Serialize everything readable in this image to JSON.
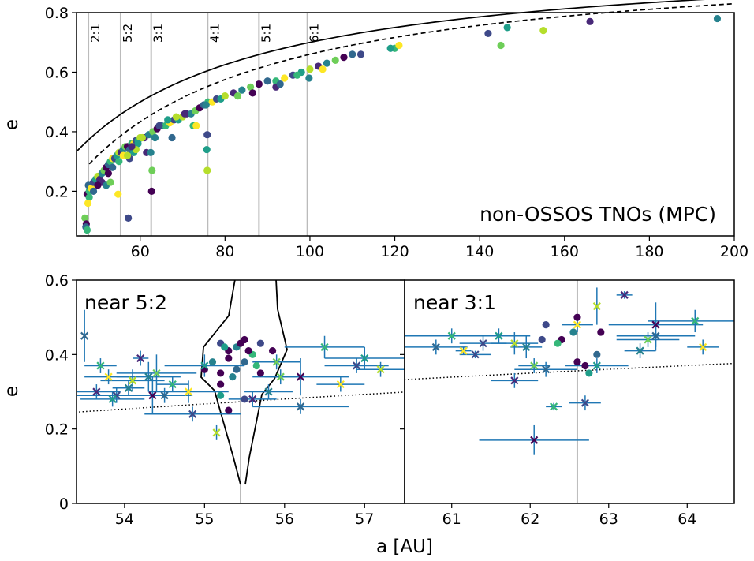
{
  "chart_data": [
    {
      "type": "scatter",
      "panel": "top",
      "title": "",
      "xlabel": "",
      "ylabel": "e",
      "xlim": [
        45,
        200
      ],
      "ylim": [
        0.05,
        0.8
      ],
      "xticks": [
        60,
        80,
        100,
        120,
        140,
        160,
        180,
        200
      ],
      "yticks": [
        0.2,
        0.4,
        0.6,
        0.8
      ],
      "grid": false,
      "annotation": "non-OSSOS TNOs (MPC)",
      "resonances": [
        {
          "label": "2:1",
          "a": 47.8
        },
        {
          "label": "5:2",
          "a": 55.4
        },
        {
          "label": "3:1",
          "a": 62.6
        },
        {
          "label": "4:1",
          "a": 75.9
        },
        {
          "label": "5:1",
          "a": 88.0
        },
        {
          "label": "6:1",
          "a": 99.4
        }
      ],
      "series": [
        {
          "values": [
            [
              47.5,
              0.19
            ],
            [
              47.8,
              0.22
            ],
            [
              48.0,
              0.2
            ],
            [
              48.5,
              0.21
            ],
            [
              49.0,
              0.23
            ],
            [
              49.5,
              0.24
            ],
            [
              50.0,
              0.25
            ],
            [
              50.5,
              0.24
            ],
            [
              51.0,
              0.26
            ],
            [
              51.5,
              0.27
            ],
            [
              52.0,
              0.28
            ],
            [
              52.5,
              0.29
            ],
            [
              53.0,
              0.3
            ],
            [
              53.5,
              0.31
            ],
            [
              54.0,
              0.31
            ],
            [
              54.5,
              0.32
            ],
            [
              55.0,
              0.33
            ],
            [
              55.5,
              0.33
            ],
            [
              56.0,
              0.34
            ],
            [
              56.5,
              0.35
            ],
            [
              57.0,
              0.35
            ],
            [
              57.5,
              0.34
            ],
            [
              58.0,
              0.36
            ],
            [
              58.5,
              0.36
            ],
            [
              59.0,
              0.37
            ],
            [
              59.5,
              0.37
            ],
            [
              60.0,
              0.38
            ],
            [
              61.0,
              0.38
            ],
            [
              62.0,
              0.39
            ],
            [
              63.0,
              0.4
            ],
            [
              64.0,
              0.41
            ],
            [
              65.0,
              0.42
            ],
            [
              66.0,
              0.42
            ],
            [
              67.0,
              0.43
            ],
            [
              68.0,
              0.44
            ],
            [
              69.0,
              0.44
            ],
            [
              70.0,
              0.45
            ],
            [
              71.0,
              0.46
            ],
            [
              72.0,
              0.46
            ],
            [
              73.0,
              0.47
            ],
            [
              74.0,
              0.48
            ],
            [
              75.0,
              0.49
            ],
            [
              76.0,
              0.5
            ],
            [
              77.0,
              0.5
            ],
            [
              78.0,
              0.51
            ],
            [
              79.0,
              0.51
            ],
            [
              80.0,
              0.52
            ],
            [
              82.0,
              0.53
            ],
            [
              84.0,
              0.54
            ],
            [
              86.0,
              0.55
            ],
            [
              88.0,
              0.56
            ],
            [
              90.0,
              0.57
            ],
            [
              92.0,
              0.57
            ],
            [
              94.0,
              0.58
            ],
            [
              96.0,
              0.59
            ],
            [
              98.0,
              0.6
            ],
            [
              100.0,
              0.61
            ],
            [
              102.0,
              0.62
            ],
            [
              104.0,
              0.63
            ],
            [
              106.0,
              0.64
            ],
            [
              108.0,
              0.65
            ],
            [
              110.0,
              0.66
            ],
            [
              120.0,
              0.68
            ],
            [
              121.0,
              0.69
            ],
            [
              142.0,
              0.73
            ],
            [
              146.5,
              0.75
            ],
            [
              155.0,
              0.74
            ],
            [
              166.0,
              0.77
            ],
            [
              196.0,
              0.78
            ],
            [
              47.0,
              0.11
            ],
            [
              47.3,
              0.09
            ],
            [
              47.2,
              0.08
            ],
            [
              47.5,
              0.07
            ],
            [
              54.8,
              0.19
            ],
            [
              57.2,
              0.11
            ],
            [
              59.5,
              0.36
            ],
            [
              60.5,
              0.38
            ],
            [
              61.5,
              0.33
            ],
            [
              62.5,
              0.33
            ],
            [
              62.8,
              0.27
            ],
            [
              62.7,
              0.2
            ],
            [
              67.5,
              0.38
            ],
            [
              72.5,
              0.42
            ],
            [
              73.2,
              0.42
            ],
            [
              75.8,
              0.39
            ],
            [
              75.7,
              0.34
            ],
            [
              75.8,
              0.27
            ],
            [
              92.0,
              0.55
            ],
            [
              99.8,
              0.58
            ],
            [
              145.0,
              0.69
            ],
            [
              52.5,
              0.26
            ],
            [
              53.5,
              0.28
            ],
            [
              55.0,
              0.3
            ],
            [
              56.0,
              0.32
            ],
            [
              57.5,
              0.31
            ],
            [
              58.5,
              0.33
            ],
            [
              59.0,
              0.34
            ],
            [
              51.0,
              0.23
            ],
            [
              52.0,
              0.22
            ],
            [
              53.0,
              0.23
            ],
            [
              50.0,
              0.22
            ],
            [
              49.0,
              0.2
            ],
            [
              48.0,
              0.18
            ],
            [
              47.7,
              0.16
            ],
            [
              64.5,
              0.42
            ],
            [
              66.5,
              0.44
            ],
            [
              68.5,
              0.45
            ],
            [
              70.5,
              0.46
            ],
            [
              75.5,
              0.49
            ],
            [
              83.0,
              0.52
            ],
            [
              86.5,
              0.53
            ],
            [
              93.0,
              0.56
            ],
            [
              97.0,
              0.59
            ],
            [
              103.0,
              0.61
            ],
            [
              112.0,
              0.66
            ],
            [
              119.0,
              0.68
            ],
            [
              57.0,
              0.32
            ],
            [
              58.0,
              0.35
            ],
            [
              63.5,
              0.38
            ]
          ]
        }
      ],
      "curves": [
        {
          "style": "solid",
          "q_au": 30
        },
        {
          "style": "dashed",
          "q_au": 34
        }
      ]
    },
    {
      "type": "scatter",
      "panel": "bottom-left",
      "title": "",
      "annotation": "near 5:2",
      "xlabel": "",
      "ylabel": "e",
      "xlim": [
        53.4,
        57.5
      ],
      "ylim": [
        0,
        0.6
      ],
      "xticks": [
        54,
        55,
        56,
        57
      ],
      "yticks": [
        0.0,
        0.2,
        0.4,
        0.6
      ],
      "grid": false,
      "resonance_a": 55.45,
      "series": [
        {
          "values": [
            [
              55.2,
              0.43
            ],
            [
              55.3,
              0.41
            ],
            [
              55.4,
              0.42
            ],
            [
              55.5,
              0.44
            ],
            [
              55.6,
              0.4
            ],
            [
              55.3,
              0.39
            ],
            [
              55.5,
              0.38
            ],
            [
              55.45,
              0.43
            ],
            [
              55.25,
              0.42
            ],
            [
              55.55,
              0.41
            ],
            [
              55.7,
              0.43
            ],
            [
              55.85,
              0.41
            ],
            [
              55.1,
              0.38
            ],
            [
              55.0,
              0.36
            ],
            [
              55.65,
              0.37
            ],
            [
              55.2,
              0.35
            ],
            [
              55.4,
              0.36
            ],
            [
              55.7,
              0.35
            ],
            [
              55.2,
              0.29
            ],
            [
              55.3,
              0.25
            ],
            [
              55.5,
              0.28
            ],
            [
              55.2,
              0.32
            ],
            [
              55.35,
              0.34
            ]
          ]
        }
      ],
      "observed": [
        {
          "a": 53.5,
          "e": 0.45,
          "aerr": 0.0,
          "eerr": 0.07
        },
        {
          "a": 53.7,
          "e": 0.37,
          "aerr": 0.2,
          "eerr": 0.02
        },
        {
          "a": 53.8,
          "e": 0.34,
          "aerr": 0.3,
          "eerr": 0.02
        },
        {
          "a": 53.9,
          "e": 0.29,
          "aerr": 0.5,
          "eerr": 0.02
        },
        {
          "a": 53.85,
          "e": 0.28,
          "aerr": 0.4,
          "eerr": 0.02
        },
        {
          "a": 54.1,
          "e": 0.33,
          "aerr": 0.4,
          "eerr": 0.03
        },
        {
          "a": 54.2,
          "e": 0.39,
          "aerr": 0.1,
          "eerr": 0.02
        },
        {
          "a": 54.3,
          "e": 0.34,
          "aerr": 0.4,
          "eerr": 0.04
        },
        {
          "a": 54.4,
          "e": 0.35,
          "aerr": 0.5,
          "eerr": 0.05
        },
        {
          "a": 54.35,
          "e": 0.29,
          "aerr": 0.5,
          "eerr": 0.05
        },
        {
          "a": 54.5,
          "e": 0.29,
          "aerr": 0.3,
          "eerr": 0.02
        },
        {
          "a": 54.6,
          "e": 0.32,
          "aerr": 0.2,
          "eerr": 0.02
        },
        {
          "a": 54.8,
          "e": 0.3,
          "aerr": 0.5,
          "eerr": 0.03
        },
        {
          "a": 54.85,
          "e": 0.24,
          "aerr": 0.6,
          "eerr": 0.02
        },
        {
          "a": 55.0,
          "e": 0.37,
          "aerr": 0.5,
          "eerr": 0.03
        },
        {
          "a": 55.15,
          "e": 0.19,
          "aerr": 0.0,
          "eerr": 0.02
        },
        {
          "a": 55.6,
          "e": 0.28,
          "aerr": 0.3,
          "eerr": 0.02
        },
        {
          "a": 55.8,
          "e": 0.3,
          "aerr": 0.3,
          "eerr": 0.02
        },
        {
          "a": 55.95,
          "e": 0.34,
          "aerr": 0.2,
          "eerr": 0.02
        },
        {
          "a": 56.2,
          "e": 0.34,
          "aerr": 0.6,
          "eerr": 0.05
        },
        {
          "a": 56.2,
          "e": 0.26,
          "aerr": 0.6,
          "eerr": 0.02
        },
        {
          "a": 56.5,
          "e": 0.42,
          "aerr": 0.5,
          "eerr": 0.03
        },
        {
          "a": 56.7,
          "e": 0.32,
          "aerr": 0.3,
          "eerr": 0.02
        },
        {
          "a": 56.9,
          "e": 0.37,
          "aerr": 0.4,
          "eerr": 0.02
        },
        {
          "a": 57.0,
          "e": 0.39,
          "aerr": 0.5,
          "eerr": 0.03
        },
        {
          "a": 57.2,
          "e": 0.36,
          "aerr": 0.3,
          "eerr": 0.02
        },
        {
          "a": 53.65,
          "e": 0.3,
          "aerr": 0.3,
          "eerr": 0.02
        },
        {
          "a": 54.05,
          "e": 0.31,
          "aerr": 0.2,
          "eerr": 0.02
        },
        {
          "a": 55.9,
          "e": 0.38,
          "aerr": 0.3,
          "eerr": 0.02
        }
      ]
    },
    {
      "type": "scatter",
      "panel": "bottom-right",
      "title": "",
      "annotation": "near 3:1",
      "xlabel": "",
      "ylabel": "",
      "xlim": [
        60.4,
        64.6
      ],
      "ylim": [
        0,
        0.6
      ],
      "xticks": [
        61,
        62,
        63,
        64
      ],
      "yticks": [
        0.0,
        0.2,
        0.4,
        0.6
      ],
      "grid": false,
      "resonance_a": 62.6,
      "series": [
        {
          "values": [
            [
              62.2,
              0.48
            ],
            [
              62.4,
              0.44
            ],
            [
              62.55,
              0.46
            ],
            [
              62.6,
              0.5
            ],
            [
              62.35,
              0.43
            ],
            [
              62.9,
              0.46
            ],
            [
              62.85,
              0.4
            ],
            [
              62.6,
              0.38
            ],
            [
              62.75,
              0.35
            ],
            [
              62.7,
              0.37
            ],
            [
              62.15,
              0.44
            ]
          ]
        }
      ],
      "observed": [
        {
          "a": 60.8,
          "e": 0.42,
          "aerr": 0.4,
          "eerr": 0.02
        },
        {
          "a": 61.0,
          "e": 0.45,
          "aerr": 0.6,
          "eerr": 0.02
        },
        {
          "a": 61.15,
          "e": 0.41,
          "aerr": 0.1,
          "eerr": 0.01
        },
        {
          "a": 61.3,
          "e": 0.4,
          "aerr": 0.2,
          "eerr": 0.01
        },
        {
          "a": 61.6,
          "e": 0.45,
          "aerr": 0.4,
          "eerr": 0.02
        },
        {
          "a": 61.8,
          "e": 0.43,
          "aerr": 0.3,
          "eerr": 0.03
        },
        {
          "a": 61.8,
          "e": 0.33,
          "aerr": 0.3,
          "eerr": 0.02
        },
        {
          "a": 61.95,
          "e": 0.42,
          "aerr": 0.2,
          "eerr": 0.03
        },
        {
          "a": 62.05,
          "e": 0.37,
          "aerr": 0.2,
          "eerr": 0.02
        },
        {
          "a": 62.05,
          "e": 0.17,
          "aerr": 0.7,
          "eerr": 0.04
        },
        {
          "a": 62.2,
          "e": 0.36,
          "aerr": 0.4,
          "eerr": 0.02
        },
        {
          "a": 62.3,
          "e": 0.26,
          "aerr": 0.1,
          "eerr": 0.01
        },
        {
          "a": 62.6,
          "e": 0.48,
          "aerr": 0.2,
          "eerr": 0.02
        },
        {
          "a": 62.7,
          "e": 0.27,
          "aerr": 0.2,
          "eerr": 0.02
        },
        {
          "a": 62.85,
          "e": 0.37,
          "aerr": 0.4,
          "eerr": 0.02
        },
        {
          "a": 62.85,
          "e": 0.53,
          "aerr": 0.0,
          "eerr": 0.05
        },
        {
          "a": 63.2,
          "e": 0.56,
          "aerr": 0.1,
          "eerr": 0.01
        },
        {
          "a": 63.4,
          "e": 0.41,
          "aerr": 0.2,
          "eerr": 0.02
        },
        {
          "a": 63.5,
          "e": 0.44,
          "aerr": 0.4,
          "eerr": 0.02
        },
        {
          "a": 63.6,
          "e": 0.48,
          "aerr": 0.6,
          "eerr": 0.06
        },
        {
          "a": 63.6,
          "e": 0.45,
          "aerr": 0.5,
          "eerr": 0.04
        },
        {
          "a": 64.1,
          "e": 0.49,
          "aerr": 0.6,
          "eerr": 0.03
        },
        {
          "a": 64.2,
          "e": 0.42,
          "aerr": 0.2,
          "eerr": 0.02
        },
        {
          "a": 61.4,
          "e": 0.43,
          "aerr": 0.3,
          "eerr": 0.02
        }
      ]
    }
  ],
  "shared": {
    "xlabel": "a [AU]",
    "bottom_ylabel": "e",
    "colors": [
      "#440154",
      "#482878",
      "#3e4989",
      "#31688e",
      "#26828e",
      "#1f9e89",
      "#35b779",
      "#6ece58",
      "#b5de2b",
      "#fde725"
    ],
    "errorbar_color": "#1f77b4",
    "resonance_line_color": "#bbbbbb",
    "curve_color": "#000000"
  }
}
